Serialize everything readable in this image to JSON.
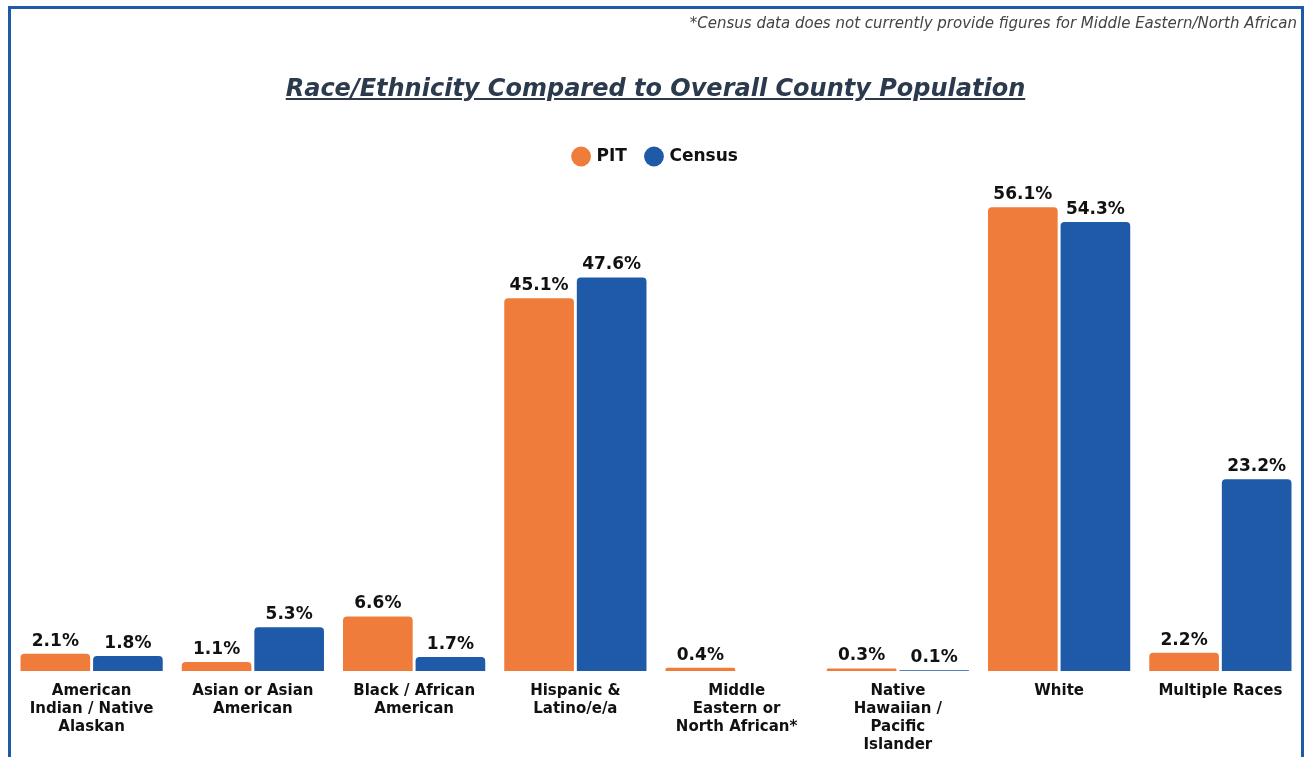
{
  "chart_data": {
    "type": "bar",
    "title": "Race/Ethnicity Compared to Overall County Population",
    "annotations": [
      "*Census data does not currently provide figures for Middle Eastern/North African"
    ],
    "categories": [
      "American Indian / Native Alaskan",
      "Asian or Asian American",
      "Black / African American",
      "Hispanic & Latino/e/a",
      "Middle Eastern or North African*",
      "Native Hawaiian / Pacific Islander",
      "White",
      "Multiple Races"
    ],
    "series": [
      {
        "name": "PIT",
        "color": "#f07c3c",
        "values": [
          2.1,
          1.1,
          6.6,
          45.1,
          0.4,
          0.3,
          56.1,
          2.2
        ],
        "value_labels": [
          "2.1%",
          "1.1%",
          "6.6%",
          "45.1%",
          "0.4%",
          "0.3%",
          "56.1%",
          "2.2%"
        ]
      },
      {
        "name": "Census",
        "color": "#1f5aa8",
        "values": [
          1.8,
          5.3,
          1.7,
          47.6,
          null,
          0.1,
          54.3,
          23.2
        ],
        "value_labels": [
          "1.8%",
          "5.3%",
          "1.7%",
          "47.6%",
          null,
          "0.1%",
          "54.3%",
          "23.2%"
        ]
      }
    ],
    "legend": "top",
    "grid": false
  }
}
